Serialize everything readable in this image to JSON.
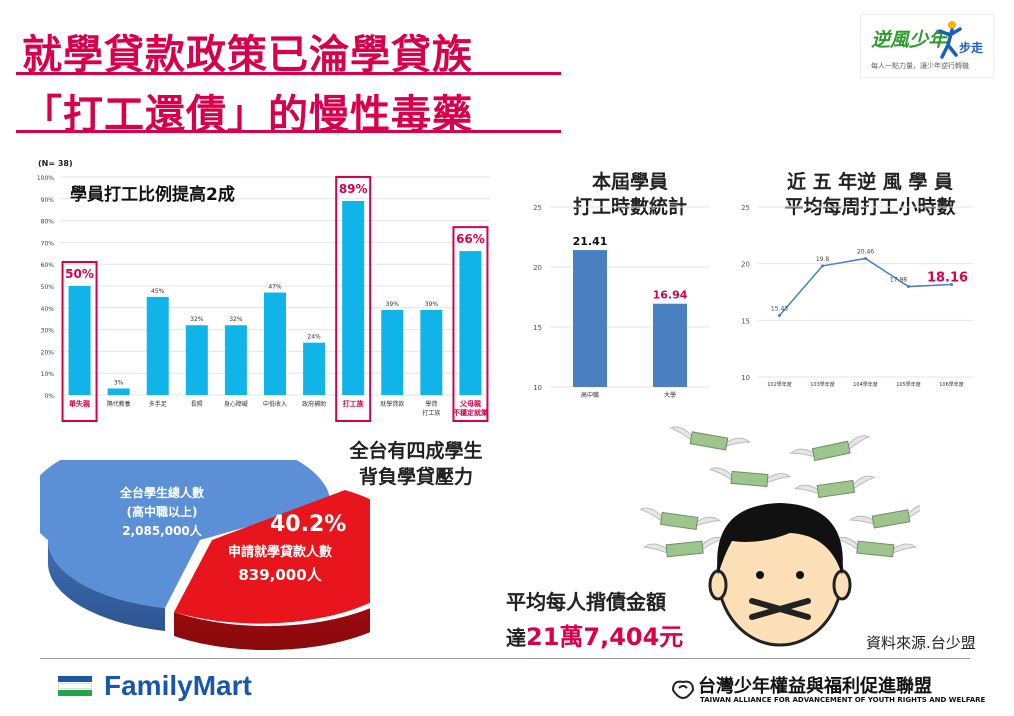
{
  "title": {
    "line1": "就學貸款政策已淪學貸族",
    "line2": "「打工還債」的慢性毒藥"
  },
  "logo": {
    "text": "逆風少年",
    "text2": "步走",
    "sub": "每人一點力量，讓少年逆行轉機"
  },
  "chart1": {
    "n_label": "(N= 38)",
    "annotation": "學員打工比例提高2成",
    "y_ticks": [
      "0%",
      "10%",
      "20%",
      "30%",
      "40%",
      "50%",
      "60%",
      "70%",
      "80%",
      "90%",
      "100%"
    ]
  },
  "chart2": {
    "title_line1": "本屆學員",
    "title_line2": "打工時數統計",
    "y_ticks": [
      "10",
      "15",
      "20",
      "25"
    ]
  },
  "chart3": {
    "title_line1": "近 五 年逆 風 學 員",
    "title_line2": "平均每周打工小時數",
    "y_ticks": [
      "10",
      "15",
      "20",
      "25"
    ]
  },
  "chart4": {
    "caption_line1": "全台有四成學生",
    "caption_line2": "背負學貸壓力",
    "big_label": "全台學生總人數",
    "big_sub": "(高中職以上)",
    "big_value": "2,085,000人",
    "small_pct": "40.2%",
    "small_label": "申請就學貸款人數",
    "small_value": "839,000人"
  },
  "debt": {
    "line1": "平均每人揹債金額",
    "prefix": "達",
    "amount": "21萬7,404元"
  },
  "source": "資料來源.台少盟",
  "footer": {
    "familymart": "FamilyMart",
    "org_name": "台灣少年權益與福利促進聯盟",
    "org_en": "TAIWAN ALLIANCE FOR ADVANCEMENT OF YOUTH RIGHTS AND WELFARE"
  },
  "colors": {
    "accent": "#d8004a",
    "bar_cyan": "#10b4e8",
    "bar_blue": "#4a7fc0",
    "pie_blue": "#5b8fd6",
    "pie_red": "#e8161c"
  },
  "chart_data": [
    {
      "type": "bar",
      "categories": [
        "單失親",
        "隔代教養",
        "多手足",
        "長照",
        "身心障礙",
        "中低收入",
        "政府補助",
        "打工族",
        "就學貸款",
        "學貸打工族",
        "父母親不穩定就業"
      ],
      "values": [
        50,
        3,
        45,
        32,
        32,
        47,
        24,
        89,
        39,
        39,
        66
      ],
      "value_labels": [
        "50%",
        "3%",
        "45%",
        "32%",
        "32%",
        "47%",
        "24%",
        "89%",
        "39%",
        "39%",
        "66%"
      ],
      "highlighted": [
        "單失親",
        "打工族",
        "父母親不穩定就業"
      ],
      "ylim": [
        0,
        100
      ]
    },
    {
      "type": "bar",
      "categories": [
        "高中職",
        "大學"
      ],
      "values": [
        21.41,
        16.94
      ],
      "value_labels": [
        "21.41",
        "16.94"
      ],
      "ylim": [
        10,
        25
      ]
    },
    {
      "type": "line",
      "x": [
        "102學年度",
        "103學年度",
        "104學年度",
        "105學年度",
        "106學年度"
      ],
      "values": [
        15.43,
        19.8,
        20.46,
        17.98,
        18.16
      ],
      "value_labels": [
        "15.43",
        "19.8",
        "20.46",
        "17.98",
        "18.16"
      ],
      "ylim": [
        10,
        25
      ]
    },
    {
      "type": "pie",
      "labels": [
        "全台學生總人數",
        "申請就學貸款人數"
      ],
      "values": [
        59.8,
        40.2
      ]
    }
  ]
}
